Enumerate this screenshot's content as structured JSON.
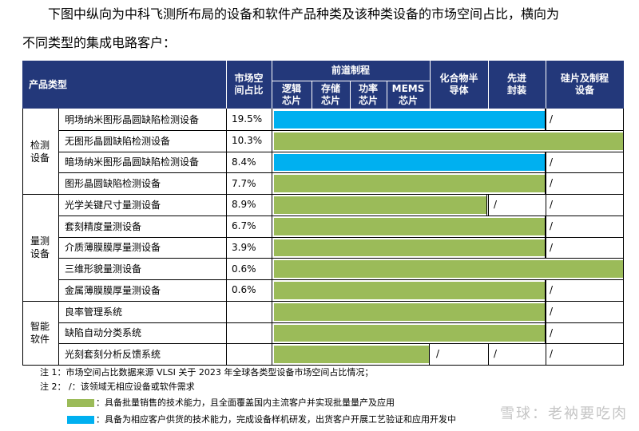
{
  "intro": {
    "line1": "下图中纵向为中科飞测所布局的设备和软件产品种类及该种类设备的市场空间占比，横向为",
    "line2": "不同类型的集成电路客户："
  },
  "header": {
    "product_type": "产品类型",
    "market_share": "市场空间占比",
    "front_process": "前道制程",
    "logic": "逻辑芯片",
    "storage": "存储芯片",
    "power": "功率芯片",
    "mems": "MEMS芯片",
    "compound": "化合物半导体",
    "advanced_pkg": "先进封装",
    "wafer": "硅片及制程设备"
  },
  "colors": {
    "green": "#9bbb59",
    "blue": "#00b0f0",
    "header": "#23387a"
  },
  "groups": [
    "检测设备",
    "量测设备",
    "智能软件"
  ],
  "rows": [
    {
      "name": "明场纳米图形晶圆缺陷检测设备",
      "share": "19.5%"
    },
    {
      "name": "无图形晶圆缺陷检测设备",
      "share": "10.3%"
    },
    {
      "name": "暗场纳米图形晶圆缺陷检测设备",
      "share": "8.4%"
    },
    {
      "name": "图形晶圆缺陷检测设备",
      "share": "7.7%"
    },
    {
      "name": "光学关键尺寸量测设备",
      "share": "8.9%"
    },
    {
      "name": "套刻精度量测设备",
      "share": "6.7%"
    },
    {
      "name": "介质薄膜膜厚量测设备",
      "share": "3.9%"
    },
    {
      "name": "三维形貌量测设备",
      "share": "0.6%"
    },
    {
      "name": "金属薄膜膜厚量测设备",
      "share": "0.6%"
    },
    {
      "name": "良率管理系统",
      "share": ""
    },
    {
      "name": "缺陷自动分类系统",
      "share": ""
    },
    {
      "name": "光刻套刻分析反馈系统",
      "share": ""
    }
  ],
  "slash": "/",
  "notes": {
    "note1": "注 1：市场空间占比数据来源 VLSI 关于 2023 年全球各类型设备市场空间占比情况；",
    "note2": "注 2：    /：该领域无相应设备或软件需求",
    "legend_green": "：具备批量销售的技术能力，且全面覆盖国内主流客户并实现批量量产及应用",
    "legend_blue": "：具备为相应客户供货的技术能力，完成设备样机研发，出货客户开展工艺验证和应用开发中"
  },
  "watermark": "雪球：老衲要吃肉"
}
